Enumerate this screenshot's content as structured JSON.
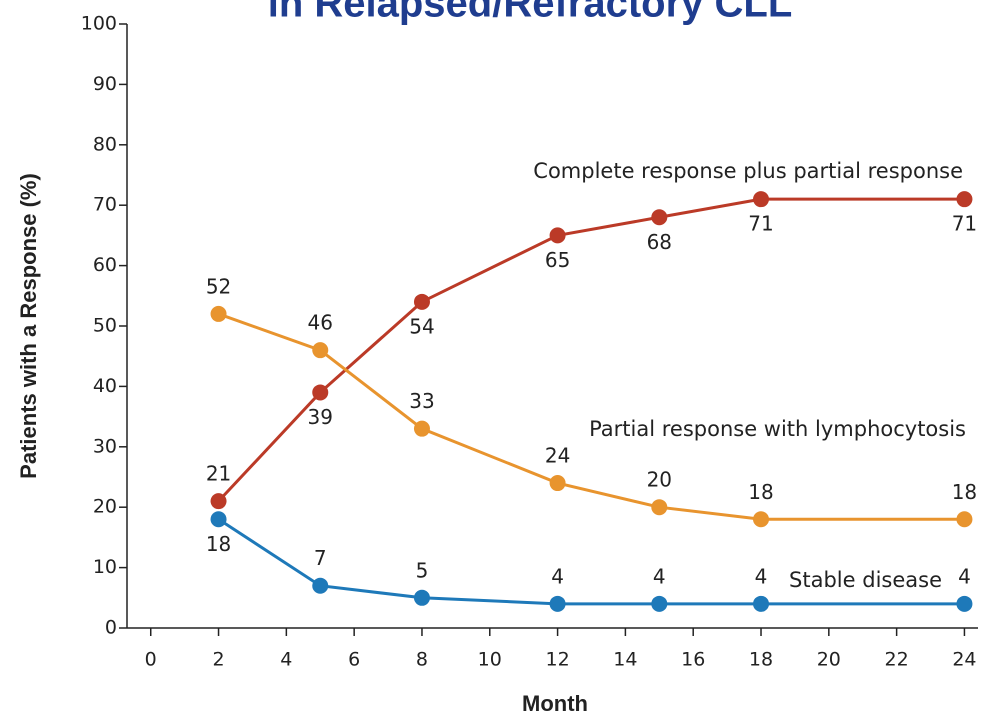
{
  "chart_data": {
    "type": "line",
    "title": "in Relapsed/Refractory CLL",
    "x_label": "Month",
    "y_label": "Patients with a Response (%)",
    "x": [
      2,
      5,
      8,
      12,
      15,
      18,
      24
    ],
    "series": [
      {
        "name": "Complete response plus partial response",
        "color": "#bb3a27",
        "values": [
          21,
          39,
          54,
          65,
          68,
          71,
          71
        ]
      },
      {
        "name": "Partial response with lymphocytosis",
        "color": "#e8942e",
        "values": [
          52,
          46,
          33,
          24,
          20,
          18,
          18
        ]
      },
      {
        "name": "Stable disease",
        "color": "#1e79b9",
        "values": [
          18,
          7,
          5,
          4,
          4,
          4,
          4
        ]
      }
    ],
    "xlim": [
      -0.7,
      24.4
    ],
    "xticks": [
      0,
      2,
      4,
      6,
      8,
      10,
      12,
      14,
      16,
      18,
      20,
      22,
      24
    ],
    "ylim": [
      0,
      100
    ],
    "yticks": [
      0,
      10,
      20,
      30,
      40,
      50,
      60,
      70,
      80,
      90,
      100
    ]
  }
}
